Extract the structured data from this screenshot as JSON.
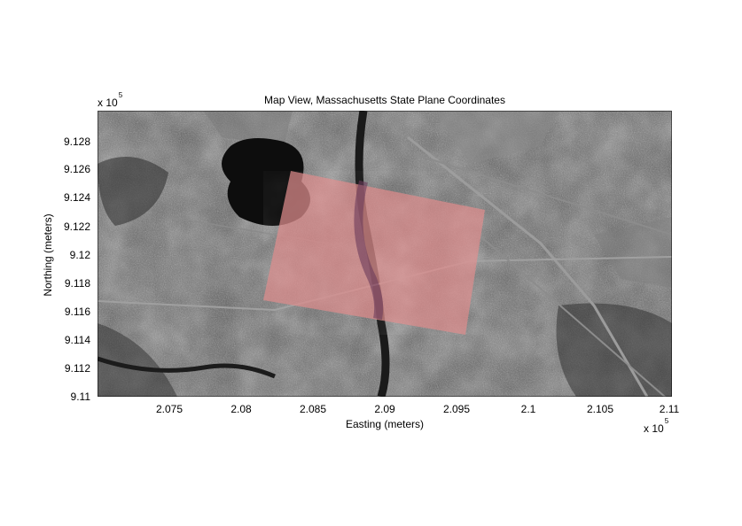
{
  "figure": {
    "title": "Map View, Massachusetts State Plane Coordinates",
    "xlabel": "Easting (meters)",
    "ylabel": "Northing (meters)",
    "x_exponent": {
      "base": "x 10",
      "power": "5"
    },
    "y_exponent": {
      "base": "x 10",
      "power": "5"
    },
    "x_ticks": [
      "2.075",
      "2.08",
      "2.085",
      "2.09",
      "2.095",
      "2.1",
      "2.105",
      "2.11"
    ],
    "y_ticks": [
      "9.128",
      "9.126",
      "9.124",
      "9.122",
      "9.12",
      "9.118",
      "9.116",
      "9.114",
      "9.112",
      "9.11"
    ],
    "xlim": [
      2.07,
      2.11
    ],
    "ylim": [
      9.11,
      9.13
    ],
    "overlay_color": "#e08a8a",
    "basemap": "grayscale aerial orthophoto",
    "overlay": "semi-transparent reddish georeferenced photo"
  }
}
